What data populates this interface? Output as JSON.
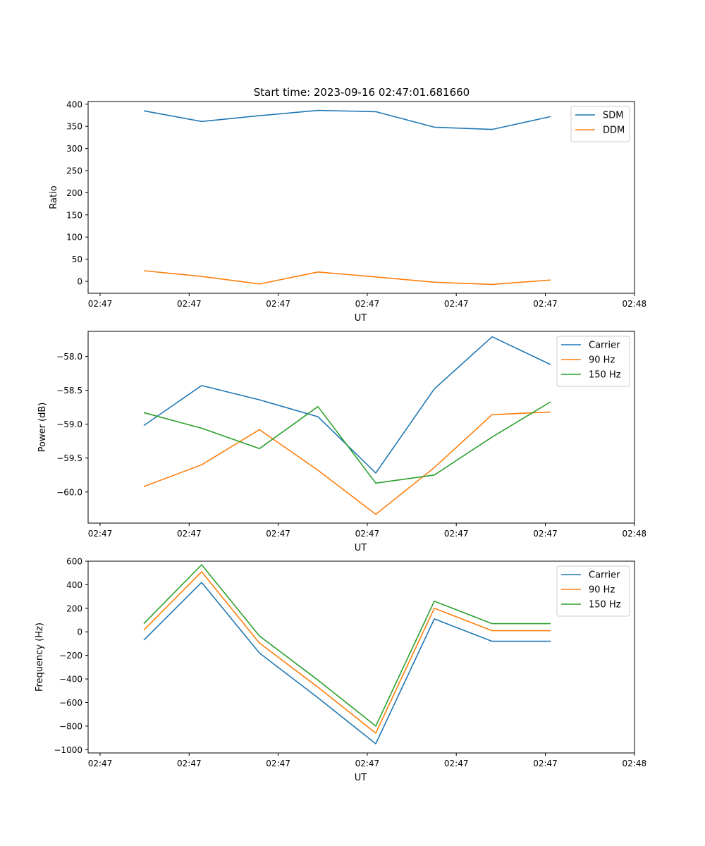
{
  "suptitle": "Start time: 2023-09-16 02:47:01.681660",
  "chart_data": [
    {
      "type": "line",
      "title": "Start time: 2023-09-16 02:47:01.681660",
      "xlabel": "UT",
      "ylabel": "Ratio",
      "x_tick_labels": [
        "02:47",
        "02:47",
        "02:47",
        "02:47",
        "02:47",
        "02:47",
        "02:48"
      ],
      "x": [
        1,
        2,
        3,
        4,
        5,
        6,
        7,
        8
      ],
      "xlim": [
        0.6,
        9.2
      ],
      "ylim": [
        -27,
        406
      ],
      "yticks": [
        0,
        50,
        100,
        150,
        200,
        250,
        300,
        350,
        400
      ],
      "ytick_labels": [
        "0",
        "50",
        "100",
        "150",
        "200",
        "250",
        "300",
        "350",
        "400"
      ],
      "legend_position": "top-right",
      "series": [
        {
          "name": "SDM",
          "color": "#1f77b4",
          "values": [
            385,
            361,
            374,
            386,
            383,
            348,
            343,
            372
          ]
        },
        {
          "name": "DDM",
          "color": "#ff7f0e",
          "values": [
            24,
            11,
            -6,
            21,
            10,
            -2,
            -7,
            3
          ]
        }
      ]
    },
    {
      "type": "line",
      "xlabel": "UT",
      "ylabel": "Power (dB)",
      "x_tick_labels": [
        "02:47",
        "02:47",
        "02:47",
        "02:47",
        "02:47",
        "02:47",
        "02:48"
      ],
      "x": [
        1,
        2,
        3,
        4,
        5,
        6,
        7,
        8
      ],
      "xlim": [
        0.6,
        9.2
      ],
      "ylim": [
        -60.46,
        -57.63
      ],
      "yticks": [
        -60.0,
        -59.5,
        -59.0,
        -58.5,
        -58.0
      ],
      "ytick_labels": [
        "−60.0",
        "−59.5",
        "−59.0",
        "−58.5",
        "−58.0"
      ],
      "legend_position": "top-right",
      "series": [
        {
          "name": "Carrier",
          "color": "#1f77b4",
          "values": [
            -59.02,
            -58.43,
            -58.64,
            -58.89,
            -59.72,
            -58.48,
            -57.71,
            -58.12
          ]
        },
        {
          "name": "90 Hz",
          "color": "#ff7f0e",
          "values": [
            -59.92,
            -59.6,
            -59.08,
            -59.68,
            -60.33,
            -59.64,
            -58.86,
            -58.82
          ]
        },
        {
          "name": "150 Hz",
          "color": "#2ca02c",
          "values": [
            -58.83,
            -59.06,
            -59.36,
            -58.74,
            -59.87,
            -59.75,
            -59.19,
            -58.67
          ]
        }
      ]
    },
    {
      "type": "line",
      "xlabel": "UT",
      "ylabel": "Frequency (Hz)",
      "x_tick_labels": [
        "02:47",
        "02:47",
        "02:47",
        "02:47",
        "02:47",
        "02:47",
        "02:48"
      ],
      "x": [
        1,
        2,
        3,
        4,
        5,
        6,
        7,
        8
      ],
      "xlim": [
        0.6,
        9.2
      ],
      "ylim": [
        -1028,
        600
      ],
      "yticks": [
        -1000,
        -800,
        -600,
        -400,
        -200,
        0,
        200,
        400,
        600
      ],
      "ytick_labels": [
        "−1000",
        "−800",
        "−600",
        "−400",
        "−200",
        "0",
        "200",
        "400",
        "600"
      ],
      "legend_position": "top-right",
      "series": [
        {
          "name": "Carrier",
          "color": "#1f77b4",
          "values": [
            -70,
            420,
            -180,
            -560,
            -950,
            110,
            -80,
            -80
          ]
        },
        {
          "name": "90 Hz",
          "color": "#ff7f0e",
          "values": [
            15,
            510,
            -95,
            -470,
            -860,
            200,
            10,
            10
          ]
        },
        {
          "name": "150 Hz",
          "color": "#2ca02c",
          "values": [
            70,
            570,
            -35,
            -410,
            -800,
            260,
            70,
            70
          ]
        }
      ]
    }
  ]
}
